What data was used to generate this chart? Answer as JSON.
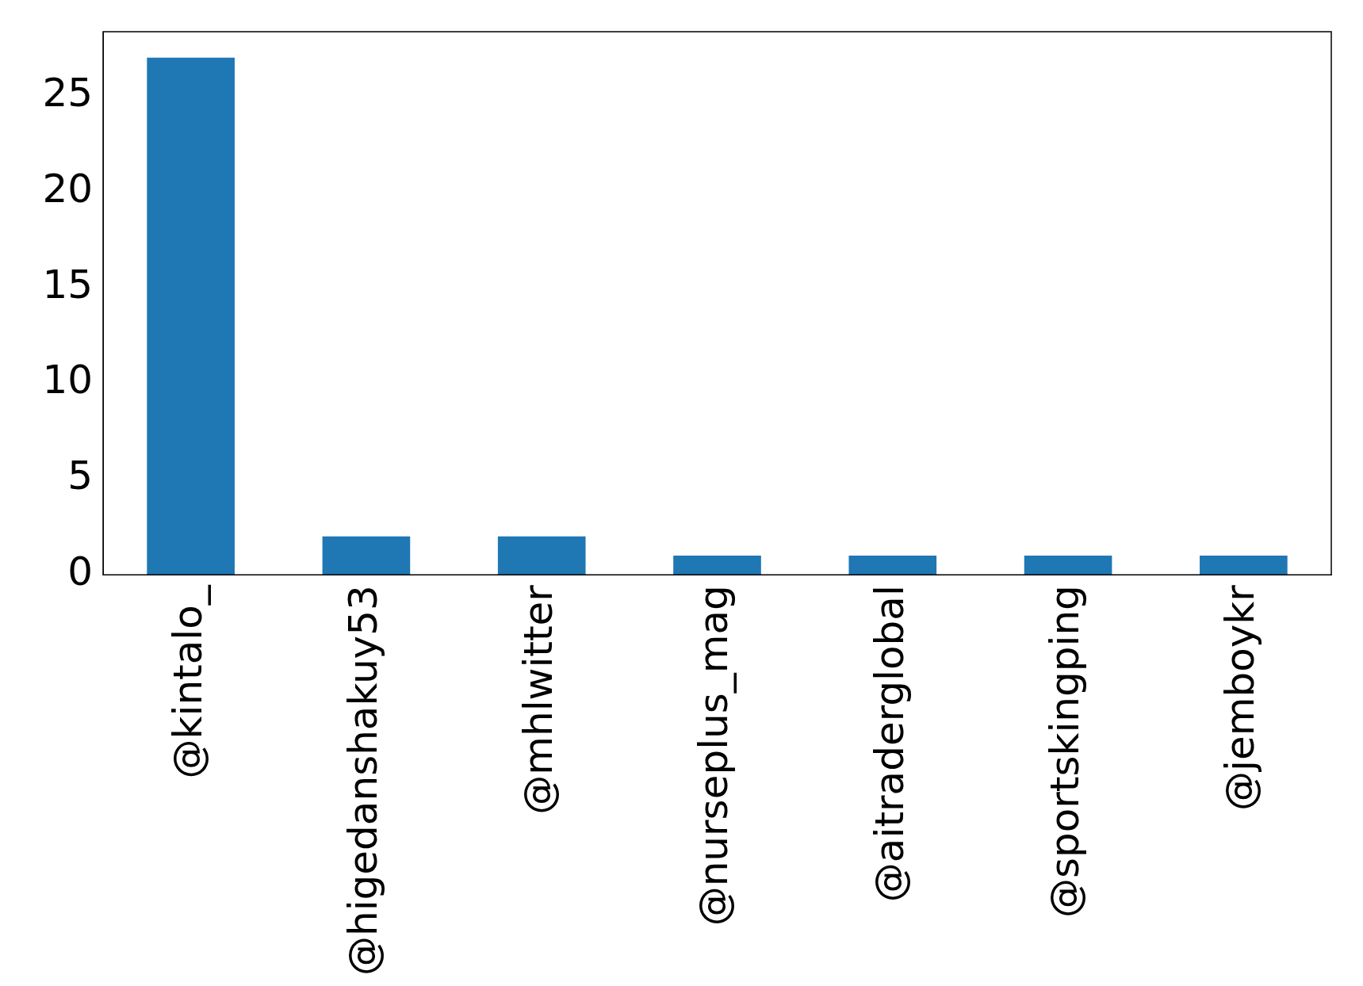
{
  "chart_data": {
    "type": "bar",
    "categories": [
      "@kintalo_",
      "@higedanshakuy53",
      "@mhlwitter",
      "@nurseplus_mag",
      "@aitraderglobal",
      "@sportskingping",
      "@jemboykr"
    ],
    "values": [
      27,
      2,
      2,
      1,
      1,
      1,
      1
    ],
    "color": "#1f77b4",
    "ylim": [
      0,
      28.35
    ],
    "yticks": [
      0,
      5,
      10,
      15,
      20,
      25
    ],
    "grid": false,
    "legend": false
  }
}
